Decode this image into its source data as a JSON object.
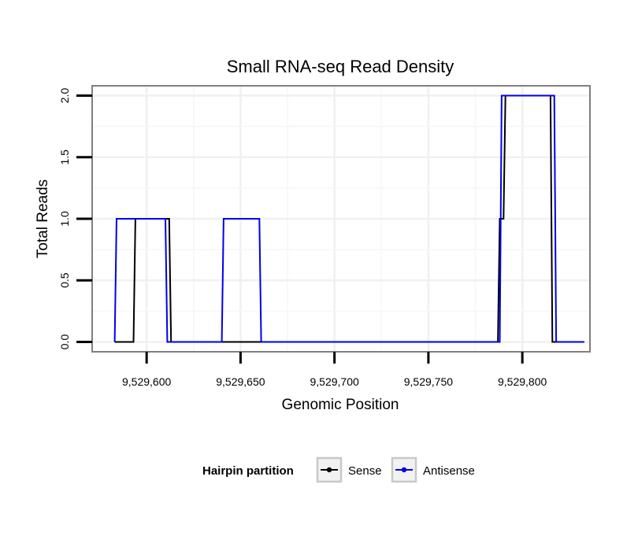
{
  "chart_data": {
    "type": "line",
    "title": "Small RNA-seq Read Density",
    "xlabel": "Genomic Position",
    "ylabel": "Total Reads",
    "xlim": [
      9529571,
      9529836
    ],
    "ylim": [
      -0.08,
      2.08
    ],
    "x_ticks": [
      9529600,
      9529650,
      9529700,
      9529750,
      9529800
    ],
    "x_tick_labels": [
      "9,529,600",
      "9,529,650",
      "9,529,700",
      "9,529,750",
      "9,529,800"
    ],
    "y_ticks": [
      0,
      0.5,
      1,
      1.5,
      2
    ],
    "y_tick_labels": [
      "0.0",
      "0.5",
      "1.0",
      "1.5",
      "2.0"
    ],
    "grid": true,
    "legend": {
      "title": "Hairpin partition",
      "placement": "bottom"
    },
    "series": [
      {
        "name": "Sense",
        "color": "#000000",
        "points": [
          [
            9529583,
            0
          ],
          [
            9529593,
            0
          ],
          [
            9529594,
            1
          ],
          [
            9529612,
            1
          ],
          [
            9529613,
            0
          ],
          [
            9529787,
            0
          ],
          [
            9529788,
            1
          ],
          [
            9529790,
            1
          ],
          [
            9529791,
            2
          ],
          [
            9529815,
            2
          ],
          [
            9529816,
            0
          ],
          [
            9529833,
            0
          ]
        ]
      },
      {
        "name": "Antisense",
        "color": "#0000ee",
        "points": [
          [
            9529583,
            0
          ],
          [
            9529584,
            1
          ],
          [
            9529610,
            1
          ],
          [
            9529611,
            0
          ],
          [
            9529640,
            0
          ],
          [
            9529641,
            1
          ],
          [
            9529660,
            1
          ],
          [
            9529661,
            0
          ],
          [
            9529788,
            0
          ],
          [
            9529789,
            2
          ],
          [
            9529817,
            2
          ],
          [
            9529818,
            0
          ],
          [
            9529833,
            0
          ]
        ]
      }
    ]
  }
}
